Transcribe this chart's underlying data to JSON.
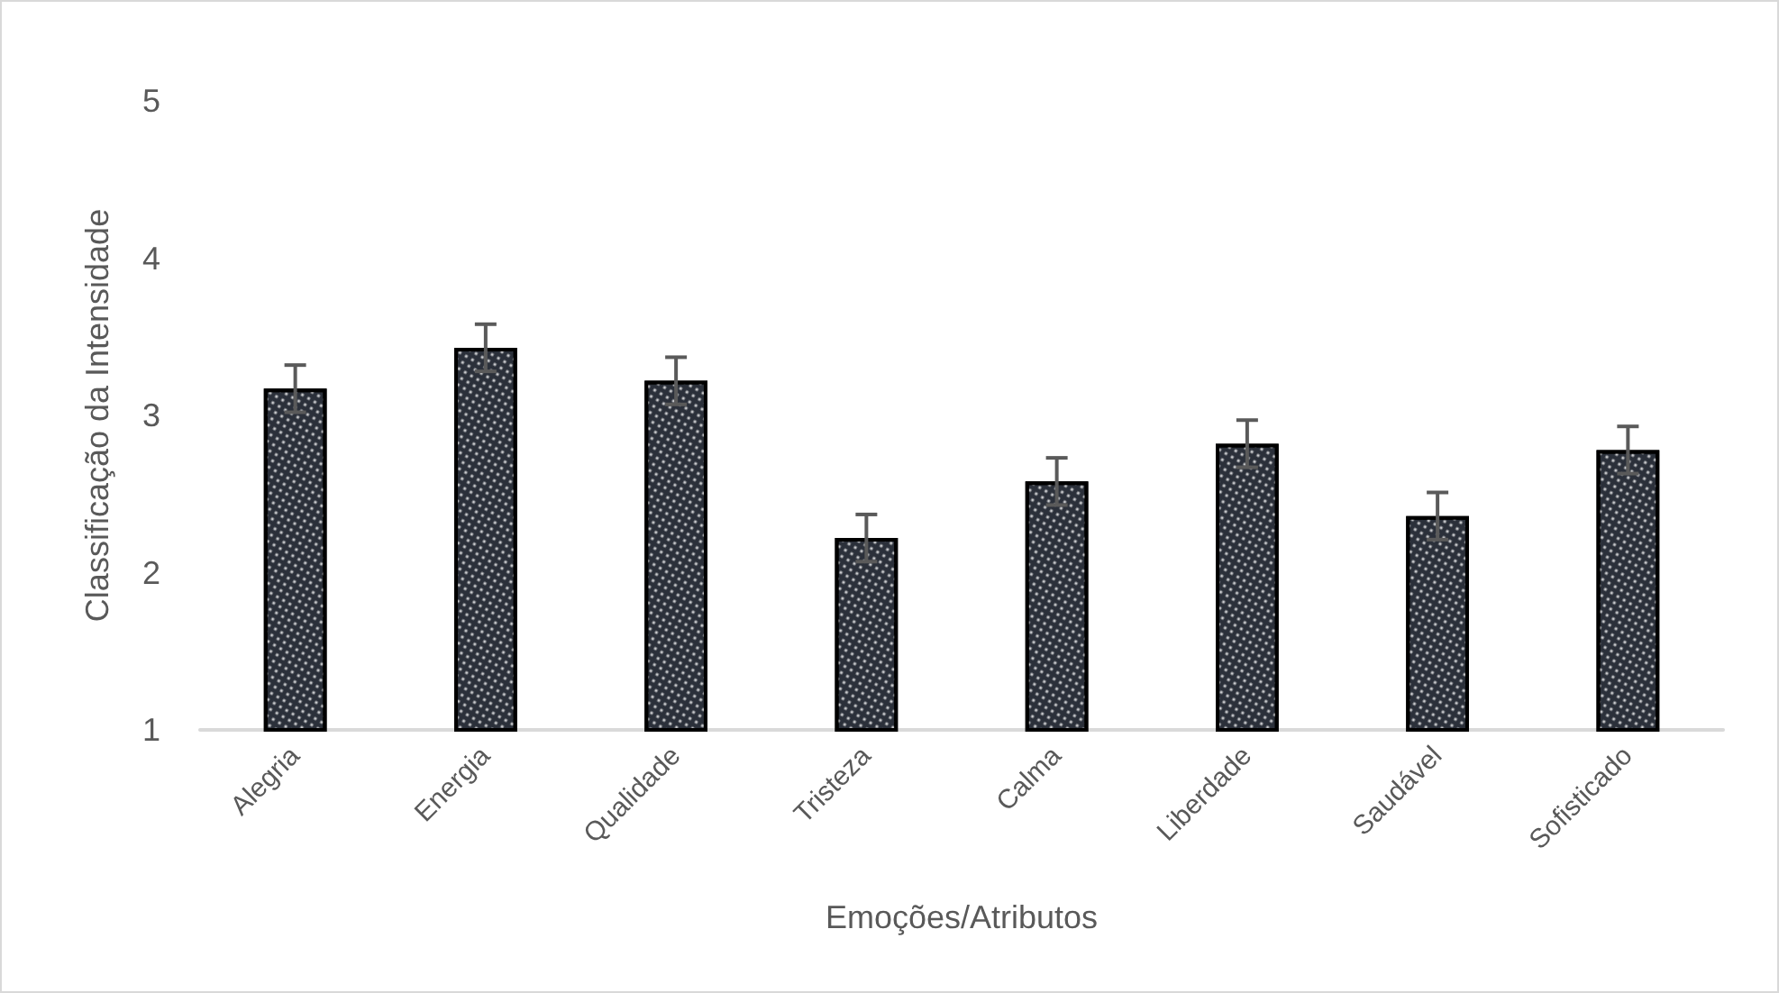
{
  "chart_data": {
    "type": "bar",
    "xlabel": "Emoções/Atributos",
    "ylabel": "Classificação da Intensidade",
    "categories": [
      "Alegria",
      "Energia",
      "Qualidade",
      "Tristeza",
      "Calma",
      "Liberdade",
      "Saudável",
      "Sofisticado"
    ],
    "values": [
      3.17,
      3.43,
      3.22,
      2.22,
      2.58,
      2.82,
      2.36,
      2.78
    ],
    "errors": [
      0.15,
      0.15,
      0.15,
      0.15,
      0.15,
      0.15,
      0.15,
      0.15
    ],
    "color": "#2b303a",
    "ylim": [
      1,
      5
    ],
    "yticks": [
      1,
      2,
      3,
      4,
      5
    ],
    "grid": false
  }
}
